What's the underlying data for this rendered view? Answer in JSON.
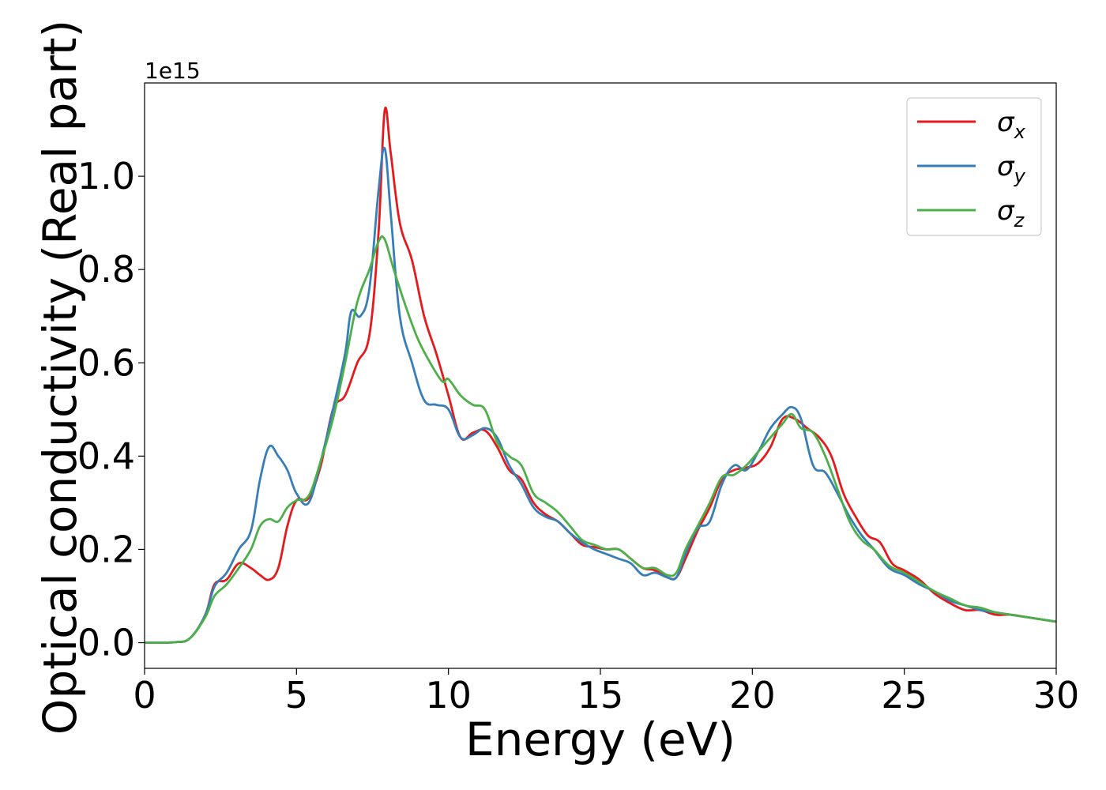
{
  "chart_data": {
    "type": "line",
    "xlabel": "Energy (eV)",
    "ylabel": "Optical conductivity (Real part)",
    "y_offset_label": "1e15",
    "xlim": [
      0,
      30
    ],
    "ylim": [
      -0.055,
      1.2
    ],
    "x_ticks": [
      0,
      5,
      10,
      15,
      20,
      25,
      30
    ],
    "y_ticks": [
      0.0,
      0.2,
      0.4,
      0.6,
      0.8,
      1.0
    ],
    "x_tick_labels": [
      "0",
      "5",
      "10",
      "15",
      "20",
      "25",
      "30"
    ],
    "y_tick_labels": [
      "0.0",
      "0.2",
      "0.4",
      "0.6",
      "0.8",
      "1.0"
    ],
    "grid": false,
    "legend_position": "top-right",
    "series": [
      {
        "name": "σx",
        "symbol": "σ",
        "subscript": "x",
        "color": "#e41a1c",
        "points": [
          [
            0,
            0
          ],
          [
            1,
            0.001
          ],
          [
            1.5,
            0.01
          ],
          [
            2,
            0.06
          ],
          [
            2.3,
            0.125
          ],
          [
            2.7,
            0.135
          ],
          [
            3.1,
            0.17
          ],
          [
            3.5,
            0.16
          ],
          [
            3.8,
            0.145
          ],
          [
            4.1,
            0.135
          ],
          [
            4.4,
            0.16
          ],
          [
            4.7,
            0.25
          ],
          [
            5,
            0.305
          ],
          [
            5.4,
            0.31
          ],
          [
            5.8,
            0.38
          ],
          [
            6.2,
            0.5
          ],
          [
            6.6,
            0.53
          ],
          [
            7,
            0.6
          ],
          [
            7.4,
            0.66
          ],
          [
            7.7,
            0.88
          ],
          [
            7.9,
            1.14
          ],
          [
            8.1,
            1.05
          ],
          [
            8.4,
            0.9
          ],
          [
            8.8,
            0.82
          ],
          [
            9.2,
            0.7
          ],
          [
            9.6,
            0.62
          ],
          [
            10,
            0.53
          ],
          [
            10.4,
            0.44
          ],
          [
            10.8,
            0.45
          ],
          [
            11.2,
            0.455
          ],
          [
            11.6,
            0.42
          ],
          [
            12,
            0.37
          ],
          [
            12.4,
            0.35
          ],
          [
            12.8,
            0.3
          ],
          [
            13.2,
            0.275
          ],
          [
            13.6,
            0.26
          ],
          [
            14,
            0.235
          ],
          [
            14.4,
            0.21
          ],
          [
            14.8,
            0.205
          ],
          [
            15.2,
            0.2
          ],
          [
            15.6,
            0.2
          ],
          [
            16,
            0.18
          ],
          [
            16.4,
            0.16
          ],
          [
            16.8,
            0.155
          ],
          [
            17.2,
            0.14
          ],
          [
            17.5,
            0.14
          ],
          [
            17.8,
            0.18
          ],
          [
            18.2,
            0.24
          ],
          [
            18.6,
            0.29
          ],
          [
            19,
            0.35
          ],
          [
            19.4,
            0.37
          ],
          [
            19.8,
            0.375
          ],
          [
            20.2,
            0.385
          ],
          [
            20.6,
            0.42
          ],
          [
            21,
            0.48
          ],
          [
            21.4,
            0.48
          ],
          [
            21.8,
            0.46
          ],
          [
            22.2,
            0.44
          ],
          [
            22.6,
            0.4
          ],
          [
            23,
            0.32
          ],
          [
            23.4,
            0.27
          ],
          [
            23.8,
            0.23
          ],
          [
            24.2,
            0.215
          ],
          [
            24.6,
            0.17
          ],
          [
            25,
            0.155
          ],
          [
            25.5,
            0.135
          ],
          [
            26,
            0.105
          ],
          [
            26.5,
            0.085
          ],
          [
            27,
            0.07
          ],
          [
            27.5,
            0.07
          ],
          [
            28,
            0.06
          ],
          [
            28.5,
            0.06
          ],
          [
            29,
            0.055
          ],
          [
            29.5,
            0.05
          ],
          [
            30,
            0.045
          ]
        ]
      },
      {
        "name": "σy",
        "symbol": "σ",
        "subscript": "y",
        "color": "#377eb8",
        "points": [
          [
            0,
            0
          ],
          [
            1,
            0.001
          ],
          [
            1.5,
            0.01
          ],
          [
            2,
            0.06
          ],
          [
            2.3,
            0.12
          ],
          [
            2.7,
            0.15
          ],
          [
            3.1,
            0.2
          ],
          [
            3.5,
            0.24
          ],
          [
            3.8,
            0.35
          ],
          [
            4.1,
            0.42
          ],
          [
            4.4,
            0.4
          ],
          [
            4.7,
            0.37
          ],
          [
            5,
            0.32
          ],
          [
            5.4,
            0.3
          ],
          [
            5.8,
            0.39
          ],
          [
            6.2,
            0.5
          ],
          [
            6.6,
            0.62
          ],
          [
            6.8,
            0.71
          ],
          [
            7.1,
            0.7
          ],
          [
            7.4,
            0.76
          ],
          [
            7.7,
            0.97
          ],
          [
            7.9,
            1.06
          ],
          [
            8.1,
            0.92
          ],
          [
            8.4,
            0.7
          ],
          [
            8.8,
            0.6
          ],
          [
            9.2,
            0.52
          ],
          [
            9.6,
            0.51
          ],
          [
            10,
            0.5
          ],
          [
            10.4,
            0.44
          ],
          [
            10.8,
            0.445
          ],
          [
            11.2,
            0.46
          ],
          [
            11.6,
            0.44
          ],
          [
            12,
            0.38
          ],
          [
            12.4,
            0.34
          ],
          [
            12.8,
            0.29
          ],
          [
            13.2,
            0.27
          ],
          [
            13.6,
            0.26
          ],
          [
            14,
            0.235
          ],
          [
            14.4,
            0.215
          ],
          [
            14.8,
            0.2
          ],
          [
            15.2,
            0.19
          ],
          [
            15.6,
            0.18
          ],
          [
            16,
            0.17
          ],
          [
            16.4,
            0.145
          ],
          [
            16.8,
            0.15
          ],
          [
            17.2,
            0.14
          ],
          [
            17.5,
            0.14
          ],
          [
            17.8,
            0.19
          ],
          [
            18.2,
            0.245
          ],
          [
            18.6,
            0.26
          ],
          [
            19,
            0.34
          ],
          [
            19.4,
            0.38
          ],
          [
            19.8,
            0.37
          ],
          [
            20.2,
            0.41
          ],
          [
            20.6,
            0.46
          ],
          [
            21,
            0.49
          ],
          [
            21.3,
            0.505
          ],
          [
            21.6,
            0.48
          ],
          [
            22,
            0.38
          ],
          [
            22.4,
            0.365
          ],
          [
            22.8,
            0.32
          ],
          [
            23.2,
            0.27
          ],
          [
            23.6,
            0.23
          ],
          [
            24,
            0.2
          ],
          [
            24.5,
            0.16
          ],
          [
            25,
            0.145
          ],
          [
            25.5,
            0.125
          ],
          [
            26,
            0.11
          ],
          [
            26.5,
            0.09
          ],
          [
            27,
            0.08
          ],
          [
            27.5,
            0.07
          ],
          [
            28,
            0.065
          ],
          [
            28.5,
            0.06
          ],
          [
            29,
            0.055
          ],
          [
            29.5,
            0.05
          ],
          [
            30,
            0.045
          ]
        ]
      },
      {
        "name": "σz",
        "symbol": "σ",
        "subscript": "z",
        "color": "#4daf4a",
        "points": [
          [
            0,
            0
          ],
          [
            1,
            0.001
          ],
          [
            1.5,
            0.01
          ],
          [
            2,
            0.055
          ],
          [
            2.3,
            0.1
          ],
          [
            2.7,
            0.125
          ],
          [
            3.1,
            0.16
          ],
          [
            3.5,
            0.2
          ],
          [
            3.8,
            0.25
          ],
          [
            4.1,
            0.265
          ],
          [
            4.4,
            0.26
          ],
          [
            4.7,
            0.29
          ],
          [
            5,
            0.305
          ],
          [
            5.4,
            0.315
          ],
          [
            5.8,
            0.39
          ],
          [
            6.2,
            0.48
          ],
          [
            6.6,
            0.6
          ],
          [
            7,
            0.73
          ],
          [
            7.4,
            0.8
          ],
          [
            7.7,
            0.86
          ],
          [
            7.9,
            0.865
          ],
          [
            8.2,
            0.8
          ],
          [
            8.6,
            0.72
          ],
          [
            9,
            0.65
          ],
          [
            9.4,
            0.6
          ],
          [
            9.8,
            0.56
          ],
          [
            10,
            0.565
          ],
          [
            10.4,
            0.53
          ],
          [
            10.8,
            0.51
          ],
          [
            11.2,
            0.5
          ],
          [
            11.6,
            0.43
          ],
          [
            12,
            0.4
          ],
          [
            12.4,
            0.38
          ],
          [
            12.8,
            0.32
          ],
          [
            13.2,
            0.3
          ],
          [
            13.6,
            0.28
          ],
          [
            14,
            0.25
          ],
          [
            14.4,
            0.22
          ],
          [
            14.8,
            0.21
          ],
          [
            15.2,
            0.2
          ],
          [
            15.6,
            0.2
          ],
          [
            16,
            0.18
          ],
          [
            16.4,
            0.16
          ],
          [
            16.8,
            0.16
          ],
          [
            17.2,
            0.145
          ],
          [
            17.5,
            0.15
          ],
          [
            17.8,
            0.2
          ],
          [
            18.2,
            0.25
          ],
          [
            18.6,
            0.3
          ],
          [
            19,
            0.355
          ],
          [
            19.4,
            0.36
          ],
          [
            19.8,
            0.38
          ],
          [
            20.2,
            0.41
          ],
          [
            20.6,
            0.44
          ],
          [
            21,
            0.47
          ],
          [
            21.3,
            0.49
          ],
          [
            21.6,
            0.46
          ],
          [
            22,
            0.45
          ],
          [
            22.4,
            0.4
          ],
          [
            22.8,
            0.33
          ],
          [
            23.2,
            0.26
          ],
          [
            23.6,
            0.22
          ],
          [
            24,
            0.2
          ],
          [
            24.5,
            0.165
          ],
          [
            25,
            0.15
          ],
          [
            25.5,
            0.13
          ],
          [
            26,
            0.11
          ],
          [
            26.5,
            0.095
          ],
          [
            27,
            0.08
          ],
          [
            27.5,
            0.075
          ],
          [
            28,
            0.065
          ],
          [
            28.5,
            0.06
          ],
          [
            29,
            0.055
          ],
          [
            29.5,
            0.05
          ],
          [
            30,
            0.045
          ]
        ]
      }
    ]
  }
}
